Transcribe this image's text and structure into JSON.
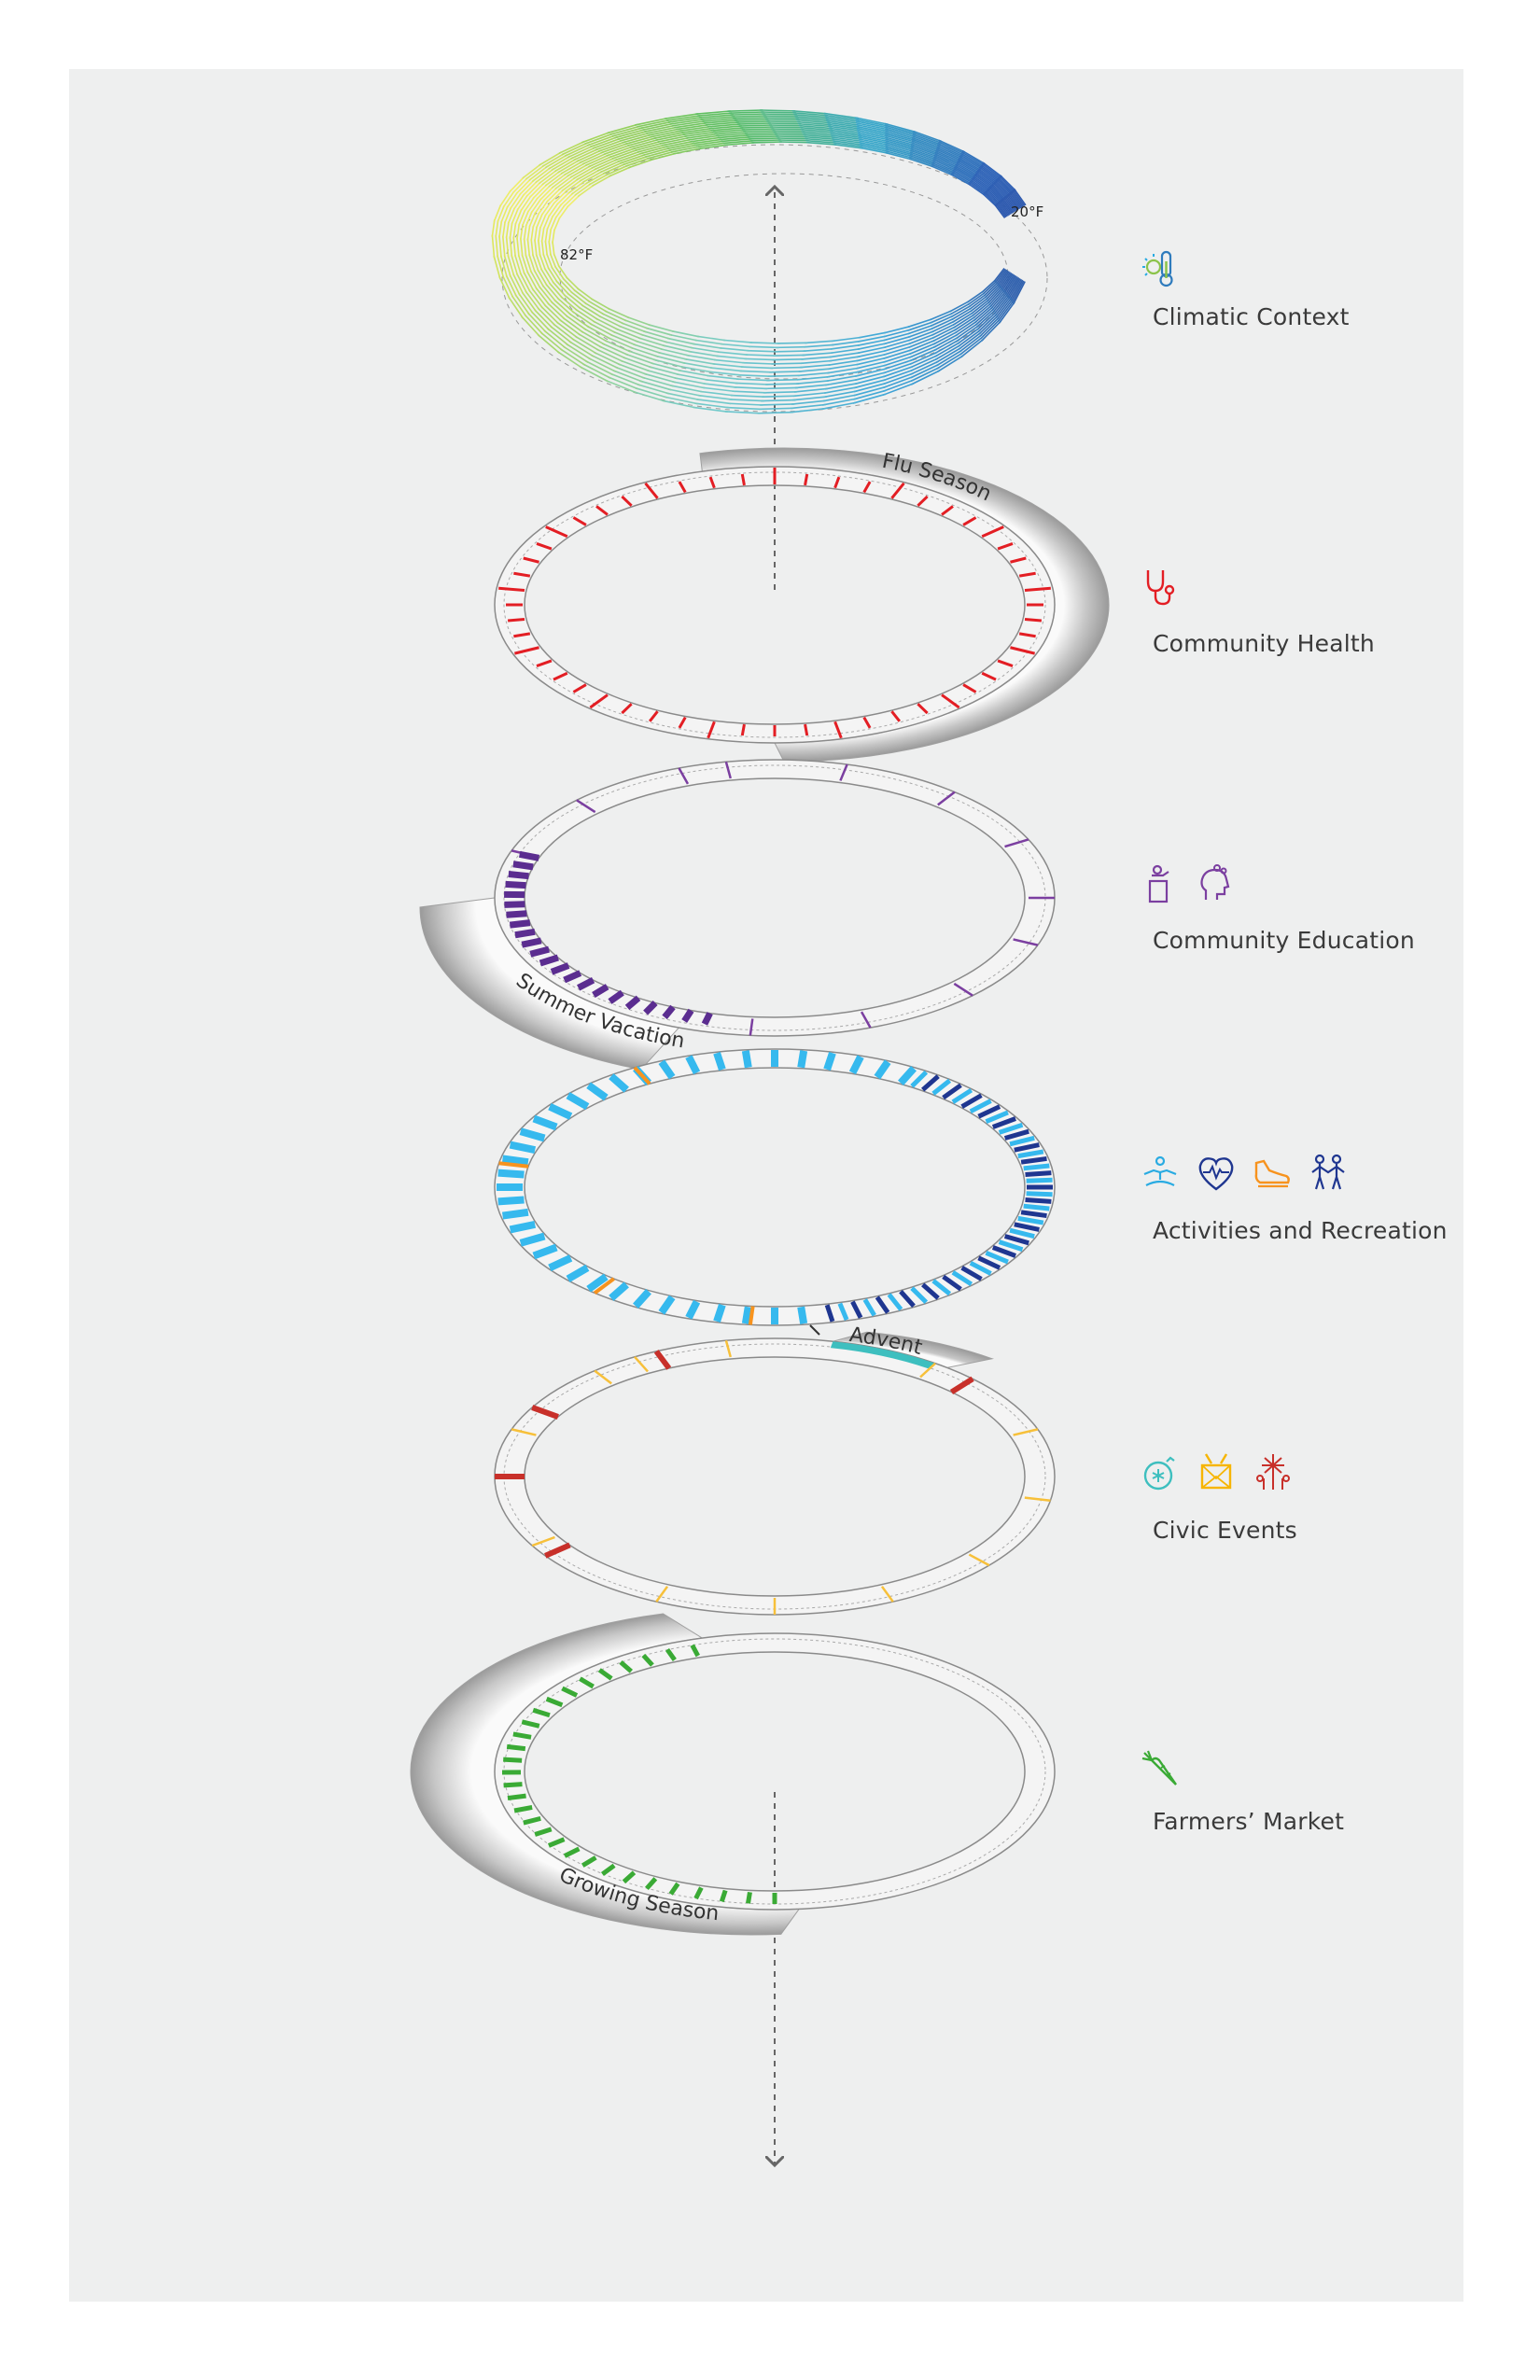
{
  "temperatures": {
    "high": "82°F",
    "low": "20°F"
  },
  "seasons": {
    "flu": "Flu Season",
    "summer": "Summer Vacation",
    "advent": "Advent",
    "growing": "Growing Season"
  },
  "layers": [
    {
      "key": "climate",
      "label": "Climatic Context",
      "icons": [
        "thermometer-sun-icon"
      ],
      "color": "#8bc34a"
    },
    {
      "key": "health",
      "label": "Community Health",
      "icons": [
        "stethoscope-icon"
      ],
      "color": "#e31e24"
    },
    {
      "key": "education",
      "label": "Community Education",
      "icons": [
        "lecturer-podium-icon",
        "head-idea-icon"
      ],
      "color": "#7b3fa0"
    },
    {
      "key": "recreation",
      "label": "Activities and Recreation",
      "icons": [
        "yoga-icon",
        "heart-pulse-icon",
        "sneaker-icon",
        "dancing-couple-icon"
      ],
      "color": "#29abe2"
    },
    {
      "key": "civic",
      "label": "Civic Events",
      "icons": [
        "ornament-icon",
        "drum-icon",
        "fireworks-icon"
      ],
      "color": "#f7b500"
    },
    {
      "key": "market",
      "label": "Farmers’ Market",
      "icons": [
        "carrot-icon"
      ],
      "color": "#3aaa35"
    }
  ],
  "colors": {
    "health": "#e31e24",
    "education": "#7b3fa0",
    "education_dark": "#5b2d90",
    "recreation_light": "#36b9ee",
    "recreation_dark": "#1f3690",
    "recreation_accent": "#f7931e",
    "civic_yellow": "#f7c03a",
    "civic_red": "#c8302a",
    "advent": "#3ebfbf",
    "market": "#3aaa35"
  }
}
